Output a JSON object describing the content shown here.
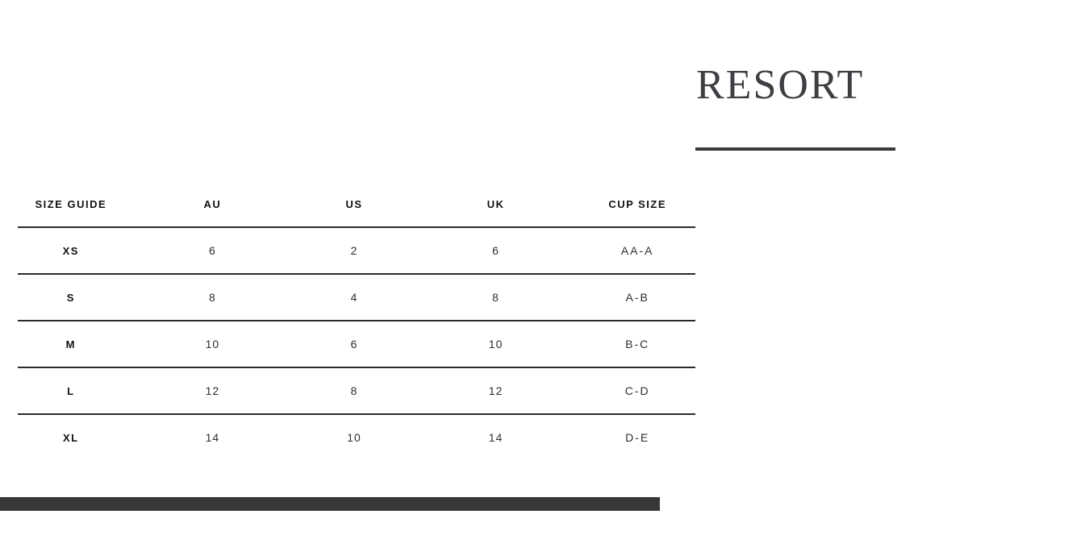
{
  "heading": {
    "title": "RESORT"
  },
  "size_table": {
    "columns": [
      "SIZE GUIDE",
      "AU",
      "US",
      "UK",
      "CUP SIZE"
    ],
    "rows": [
      {
        "size": "XS",
        "au": "6",
        "us": "2",
        "uk": "6",
        "cup": "AA-A"
      },
      {
        "size": "S",
        "au": "8",
        "us": "4",
        "uk": "8",
        "cup": "A-B"
      },
      {
        "size": "M",
        "au": "10",
        "us": "6",
        "uk": "10",
        "cup": "B-C"
      },
      {
        "size": "L",
        "au": "12",
        "us": "8",
        "uk": "12",
        "cup": "C-D"
      },
      {
        "size": "XL",
        "au": "14",
        "us": "10",
        "uk": "14",
        "cup": "D-E"
      }
    ]
  },
  "colors": {
    "background": "#ffffff",
    "header_text": "#111111",
    "value_text": "#2e2e2e",
    "divider": "#2b2b2b",
    "title_text": "#3e3e43",
    "title_underline": "#3a3a3a",
    "bottom_bar": "#373737"
  }
}
